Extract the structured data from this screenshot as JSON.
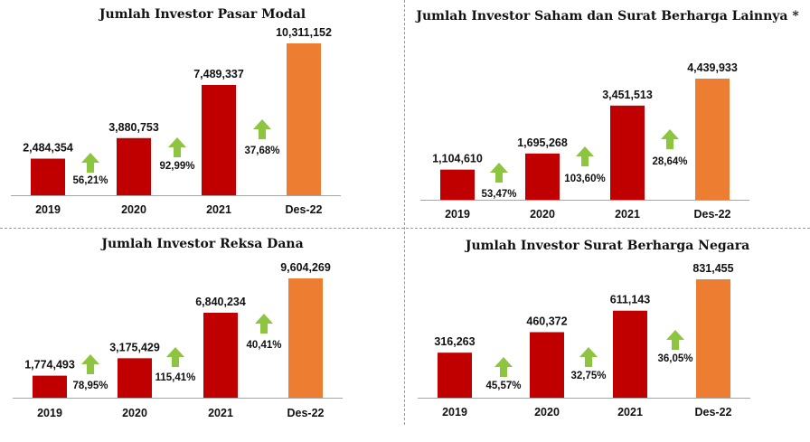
{
  "colors": {
    "bar_main": "#c00000",
    "bar_latest": "#ed7d31",
    "arrow": "#8dc540",
    "axis": "#a6a6a6",
    "text": "#111111"
  },
  "arrow_icon": "up-arrow-icon",
  "chart_data": [
    {
      "type": "bar",
      "title": "Jumlah Investor Pasar Modal",
      "categories": [
        "2019",
        "2020",
        "2021",
        "Des-22"
      ],
      "values": [
        2484354,
        3880753,
        7489337,
        10311152
      ],
      "value_labels": [
        "2,484,354",
        "3,880,753",
        "7,489,337",
        "10,311,152"
      ],
      "growth": [
        "56,21%",
        "92,99%",
        "37,68%"
      ],
      "ylim": [
        0,
        10311152
      ]
    },
    {
      "type": "bar",
      "title": "Jumlah Investor Saham dan Surat Berharga Lainnya *",
      "categories": [
        "2019",
        "2020",
        "2021",
        "Des-22"
      ],
      "values": [
        1104610,
        1695268,
        3451513,
        4439933
      ],
      "value_labels": [
        "1,104,610",
        "1,695,268",
        "3,451,513",
        "4,439,933"
      ],
      "growth": [
        "53,47%",
        "103,60%",
        "28,64%"
      ],
      "ylim": [
        0,
        4439933
      ]
    },
    {
      "type": "bar",
      "title": "Jumlah Investor Reksa Dana",
      "categories": [
        "2019",
        "2020",
        "2021",
        "Des-22"
      ],
      "values": [
        1774493,
        3175429,
        6840234,
        9604269
      ],
      "value_labels": [
        "1,774,493",
        "3,175,429",
        "6,840,234",
        "9,604,269"
      ],
      "growth": [
        "78,95%",
        "115,41%",
        "40,41%"
      ],
      "ylim": [
        0,
        9604269
      ]
    },
    {
      "type": "bar",
      "title": "Jumlah Investor Surat Berharga Negara",
      "categories": [
        "2019",
        "2020",
        "2021",
        "Des-22"
      ],
      "values": [
        316263,
        460372,
        611143,
        831455
      ],
      "value_labels": [
        "316,263",
        "460,372",
        "611,143",
        "831,455"
      ],
      "growth": [
        "45,57%",
        "32,75%",
        "36,05%"
      ],
      "ylim": [
        0,
        831455
      ]
    }
  ]
}
